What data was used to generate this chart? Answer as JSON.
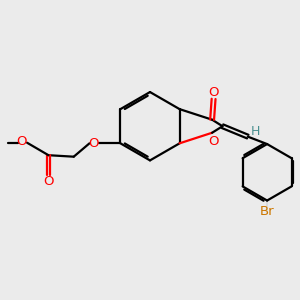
{
  "bg_color": "#ebebeb",
  "bond_color": "#000000",
  "o_color": "#ff0000",
  "br_color": "#cc7700",
  "h_color": "#4a9090",
  "line_width": 1.6,
  "figsize": [
    3.0,
    3.0
  ],
  "dpi": 100,
  "xlim": [
    0,
    10
  ],
  "ylim": [
    0,
    10
  ]
}
